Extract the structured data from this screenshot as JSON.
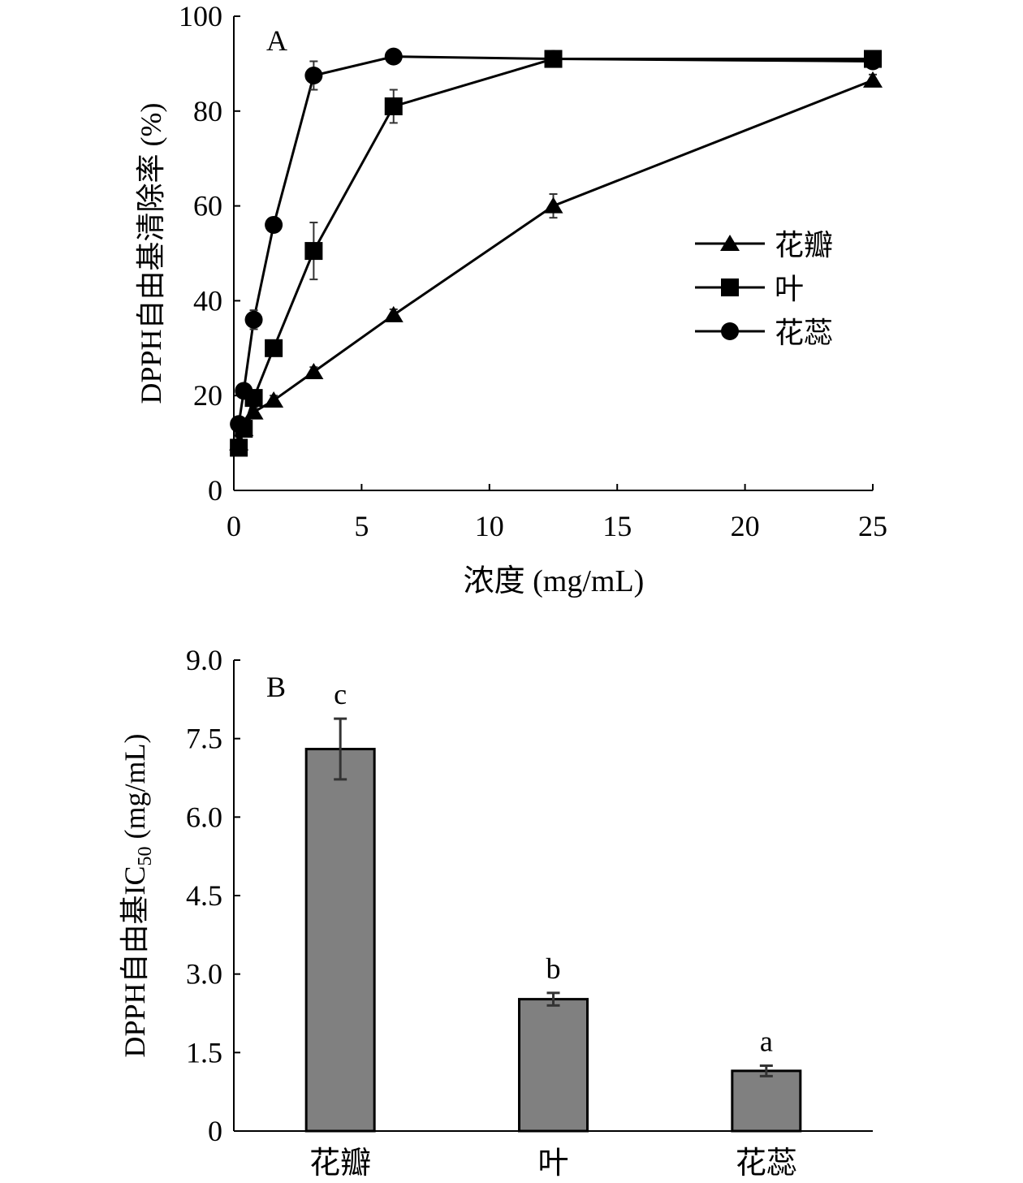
{
  "chart_data": [
    {
      "type": "line",
      "panel_label": "A",
      "xlabel": "浓度 (mg/mL)",
      "ylabel": "DPPH自由基清除率 (%)",
      "xlim": [
        0,
        25
      ],
      "ylim": [
        0,
        100
      ],
      "xticks": [
        "0",
        "5",
        "10",
        "15",
        "20",
        "25"
      ],
      "yticks": [
        "0",
        "20",
        "40",
        "60",
        "80",
        "100"
      ],
      "x": [
        0.195,
        0.39,
        0.78,
        1.56,
        3.125,
        6.25,
        12.5,
        25
      ],
      "legend_position": "right-middle",
      "series": [
        {
          "name": "花瓣",
          "marker": "triangle",
          "values": [
            10,
            13,
            16.5,
            19,
            25,
            37,
            60,
            86.5
          ],
          "errors": [
            0.8,
            0.8,
            1,
            1,
            1,
            1.2,
            2.5,
            1.2
          ]
        },
        {
          "name": "叶",
          "marker": "square",
          "values": [
            9,
            13,
            19.5,
            30,
            50.5,
            81,
            91,
            91
          ],
          "errors": [
            0.8,
            1,
            1.5,
            1.5,
            6,
            3.5,
            1,
            0.8
          ]
        },
        {
          "name": "花蕊",
          "marker": "circle",
          "values": [
            14,
            21,
            36,
            56,
            87.5,
            91.5,
            91,
            90.5
          ],
          "errors": [
            0.8,
            1,
            2,
            1.5,
            3,
            0.8,
            0.8,
            0.8
          ]
        }
      ]
    },
    {
      "type": "bar",
      "panel_label": "B",
      "xlabel": "",
      "ylabel": "DPPH自由基IC",
      "ylabel_sub": "50",
      "ylabel_unit": " (mg/mL)",
      "ylim": [
        0,
        9
      ],
      "yticks": [
        "0",
        "1.5",
        "3.0",
        "4.5",
        "6.0",
        "7.5",
        "9.0"
      ],
      "categories": [
        "花瓣",
        "叶",
        "花蕊"
      ],
      "values": [
        7.3,
        2.52,
        1.15
      ],
      "errors": [
        0.58,
        0.12,
        0.1
      ],
      "significance_labels": [
        "c",
        "b",
        "a"
      ],
      "bar_color": "#808080"
    }
  ]
}
